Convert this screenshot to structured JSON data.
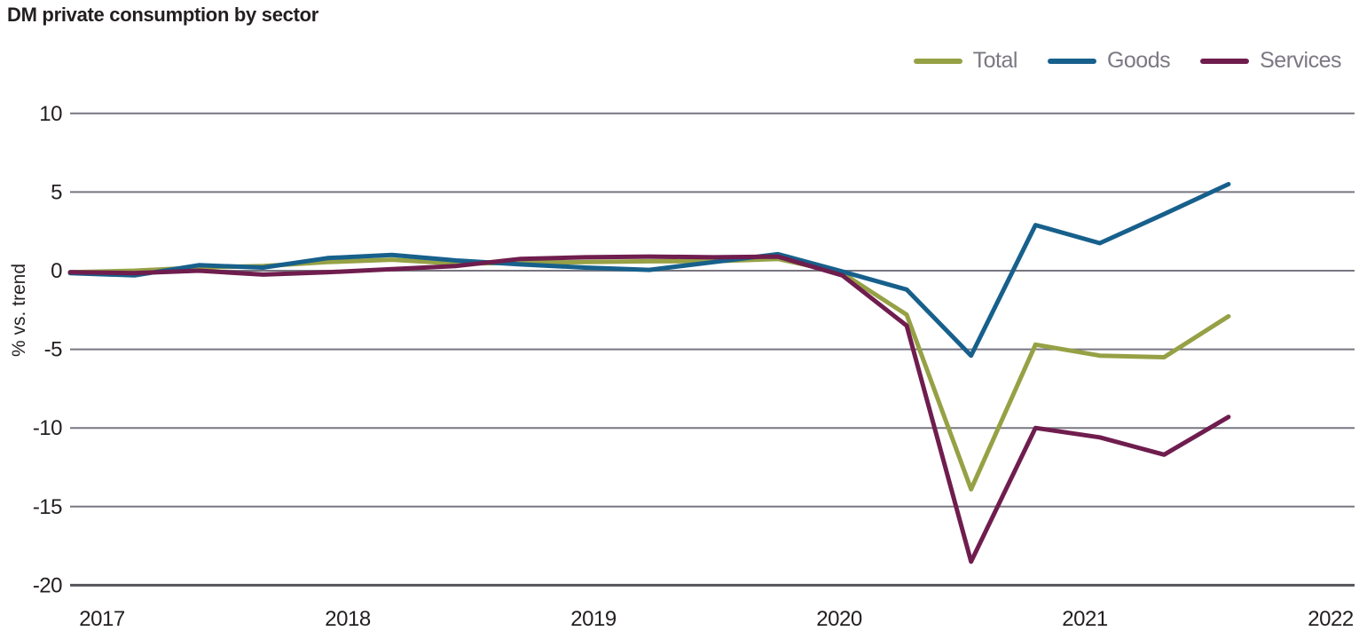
{
  "chart_data": {
    "type": "line",
    "title": "DM private consumption by sector",
    "ylabel": "% vs. trend",
    "x_tick_labels": [
      "2017",
      "2018",
      "2019",
      "2020",
      "2021",
      "2022"
    ],
    "y_ticks": [
      10,
      5,
      0,
      -5,
      -10,
      -15,
      -20
    ],
    "y_tick_labels": [
      "10",
      "5",
      "0",
      "-5",
      "-10",
      "-15",
      "-20"
    ],
    "ylim": [
      -20,
      12
    ],
    "xlim_years": [
      2017,
      2022
    ],
    "grid": "horizontal",
    "legend_position": "top-right",
    "colors": {
      "text": "#231F20",
      "legend_text": "#7C7884",
      "gridline": "#787680",
      "axis_bottom_line": "#55525A",
      "background": "#FFFFFF"
    },
    "categories": [
      "2017 Q1",
      "2017 Q2",
      "2017 Q3",
      "2017 Q4",
      "2018 Q1",
      "2018 Q2",
      "2018 Q3",
      "2018 Q4",
      "2019 Q1",
      "2019 Q2",
      "2019 Q3",
      "2019 Q4",
      "2020 Q1",
      "2020 Q2",
      "2020 Q3",
      "2020 Q4",
      "2021 Q1",
      "2021 Q2",
      "2021 Q3"
    ],
    "series": [
      {
        "name": "Total",
        "color": "#96A145",
        "values": [
          -0.1,
          0.0,
          0.2,
          0.3,
          0.55,
          0.7,
          0.45,
          0.5,
          0.55,
          0.6,
          0.6,
          0.75,
          -0.15,
          -2.8,
          -13.9,
          -4.7,
          -5.4,
          -5.5,
          -2.9
        ]
      },
      {
        "name": "Goods",
        "color": "#17608C",
        "values": [
          -0.15,
          -0.3,
          0.35,
          0.2,
          0.8,
          1.0,
          0.65,
          0.4,
          0.2,
          0.05,
          0.55,
          1.05,
          -0.05,
          -1.2,
          -5.4,
          2.9,
          1.75,
          3.6,
          5.5
        ]
      },
      {
        "name": "Services",
        "color": "#6F1D4E",
        "values": [
          -0.1,
          -0.15,
          0.0,
          -0.25,
          -0.1,
          0.1,
          0.3,
          0.75,
          0.85,
          0.9,
          0.85,
          0.9,
          -0.3,
          -3.5,
          -18.5,
          -10.0,
          -10.6,
          -11.7,
          -9.3
        ]
      }
    ]
  }
}
